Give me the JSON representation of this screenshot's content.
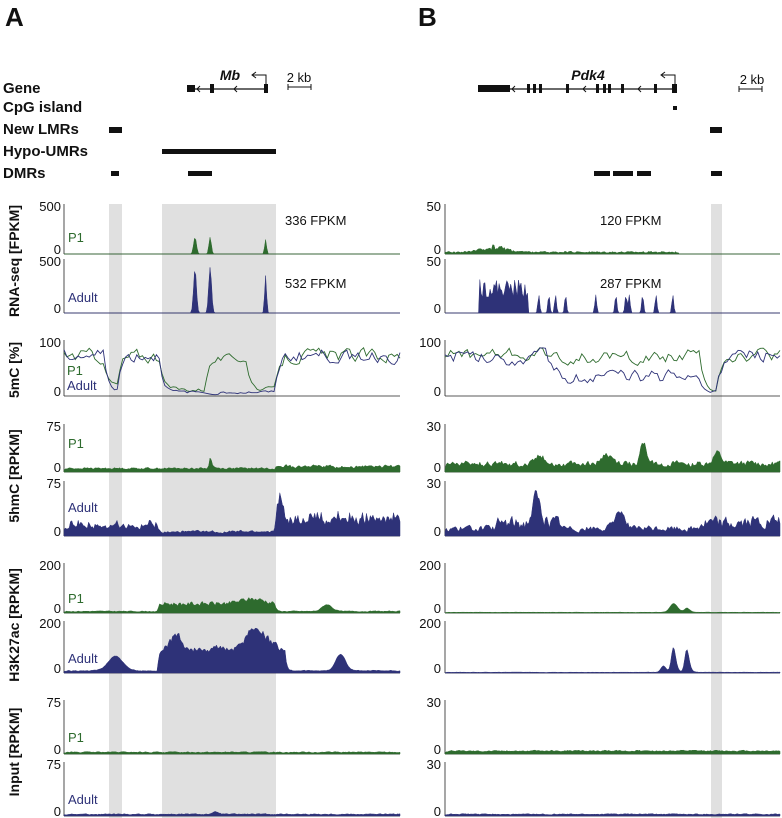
{
  "panels": {
    "a": {
      "letter": "A",
      "gene_name": "Mb",
      "scale_label": "2 kb"
    },
    "b": {
      "letter": "B",
      "gene_name": "Pdk4",
      "scale_label": "2 kb"
    }
  },
  "row_labels": {
    "gene": "Gene",
    "cpg_island": "CpG island",
    "new_lmrs": "New LMRs",
    "hypo_umrs": "Hypo-UMRs",
    "dmrs": "DMRs"
  },
  "track_labels": {
    "rnaseq": "RNA-seq [FPKM]",
    "mc5": "5mC [%]",
    "hmc5": "5hmC [RPKM]",
    "h3k27ac": "H3K27ac [RPKM]",
    "input": "Input [RPKM]"
  },
  "samples": {
    "p1": "P1",
    "adult": "Adult"
  },
  "colors": {
    "p1": "#2e6b2e",
    "adult": "#2e3278",
    "highlight": "#e0e0e0",
    "axis": "#222222"
  },
  "chart_data": [
    {
      "type": "area",
      "panel": "A",
      "gene": "Mb",
      "x_range_kb": [
        0,
        12
      ],
      "tracks": [
        {
          "name": "RNA-seq [FPKM]",
          "sample": "P1",
          "ylim": [
            0,
            500
          ],
          "ticks": [
            "500",
            "0"
          ],
          "annotation": "336 FPKM",
          "peaks_kb": [
            [
              4.3,
              0.2,
              0.35
            ],
            [
              5.0,
              0.2,
              0.35
            ],
            [
              7.4,
              0.15,
              0.35
            ]
          ]
        },
        {
          "name": "RNA-seq [FPKM]",
          "sample": "Adult",
          "ylim": [
            0,
            500
          ],
          "ticks": [
            "500",
            "0"
          ],
          "annotation": "532 FPKM",
          "peaks_kb": [
            [
              4.3,
              0.2,
              0.75
            ],
            [
              5.0,
              0.2,
              0.78
            ],
            [
              7.4,
              0.15,
              0.65
            ]
          ]
        },
        {
          "name": "5mC [%]",
          "sample": "P1",
          "ylim": [
            0,
            100
          ],
          "ticks": [
            "100",
            "0"
          ],
          "level_note": "high outside hypo-UMR, partially reduced inside"
        },
        {
          "name": "5mC [%]",
          "sample": "Adult",
          "ylim": [
            0,
            100
          ],
          "ticks": [
            "100",
            "0"
          ],
          "level_note": "high outside hypo-UMR, near zero inside"
        },
        {
          "name": "5hmC [RPKM]",
          "sample": "P1",
          "ylim": [
            0,
            75
          ],
          "ticks": [
            "75",
            "0"
          ]
        },
        {
          "name": "5hmC [RPKM]",
          "sample": "Adult",
          "ylim": [
            0,
            75
          ],
          "ticks": [
            "75",
            "0"
          ]
        },
        {
          "name": "H3K27ac [RPKM]",
          "sample": "P1",
          "ylim": [
            0,
            200
          ],
          "ticks": [
            "200",
            "0"
          ]
        },
        {
          "name": "H3K27ac [RPKM]",
          "sample": "Adult",
          "ylim": [
            0,
            200
          ],
          "ticks": [
            "200",
            "0"
          ]
        },
        {
          "name": "Input [RPKM]",
          "sample": "P1",
          "ylim": [
            0,
            75
          ],
          "ticks": [
            "75",
            "0"
          ]
        },
        {
          "name": "Input [RPKM]",
          "sample": "Adult",
          "ylim": [
            0,
            75
          ],
          "ticks": [
            "75",
            "0"
          ]
        }
      ]
    },
    {
      "type": "area",
      "panel": "B",
      "gene": "Pdk4",
      "x_range_kb": [
        0,
        12
      ],
      "tracks": [
        {
          "name": "RNA-seq [FPKM]",
          "sample": "P1",
          "ylim": [
            0,
            50
          ],
          "ticks": [
            "50",
            "0"
          ],
          "annotation": "120 FPKM"
        },
        {
          "name": "RNA-seq [FPKM]",
          "sample": "Adult",
          "ylim": [
            0,
            50
          ],
          "ticks": [
            "50",
            "0"
          ],
          "annotation": "287 FPKM"
        },
        {
          "name": "5mC [%]",
          "sample": "P1",
          "ylim": [
            0,
            100
          ],
          "ticks": [
            "100",
            "0"
          ]
        },
        {
          "name": "5mC [%]",
          "sample": "Adult",
          "ylim": [
            0,
            100
          ],
          "ticks": [
            "100",
            "0"
          ]
        },
        {
          "name": "5hmC [RPKM]",
          "sample": "P1",
          "ylim": [
            0,
            30
          ],
          "ticks": [
            "30",
            "0"
          ]
        },
        {
          "name": "5hmC [RPKM]",
          "sample": "Adult",
          "ylim": [
            0,
            30
          ],
          "ticks": [
            "30",
            "0"
          ]
        },
        {
          "name": "H3K27ac [RPKM]",
          "sample": "P1",
          "ylim": [
            0,
            200
          ],
          "ticks": [
            "200",
            "0"
          ]
        },
        {
          "name": "H3K27ac [RPKM]",
          "sample": "Adult",
          "ylim": [
            0,
            200
          ],
          "ticks": [
            "200",
            "0"
          ]
        },
        {
          "name": "Input [RPKM]",
          "sample": "P1",
          "ylim": [
            0,
            30
          ],
          "ticks": [
            "30",
            "0"
          ]
        },
        {
          "name": "Input [RPKM]",
          "sample": "Adult",
          "ylim": [
            0,
            30
          ],
          "ticks": [
            "30",
            "0"
          ]
        }
      ]
    }
  ]
}
